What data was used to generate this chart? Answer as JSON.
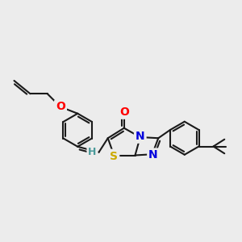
{
  "background_color": "#ececec",
  "bond_color": "#1a1a1a",
  "bond_width": 1.5,
  "atom_colors": {
    "O": "#ff0000",
    "N": "#0000dd",
    "S": "#ccaa00",
    "H": "#4a9a9a",
    "C": "#1a1a1a"
  },
  "canvas_xlim": [
    0,
    12
  ],
  "canvas_ylim": [
    0,
    10
  ]
}
